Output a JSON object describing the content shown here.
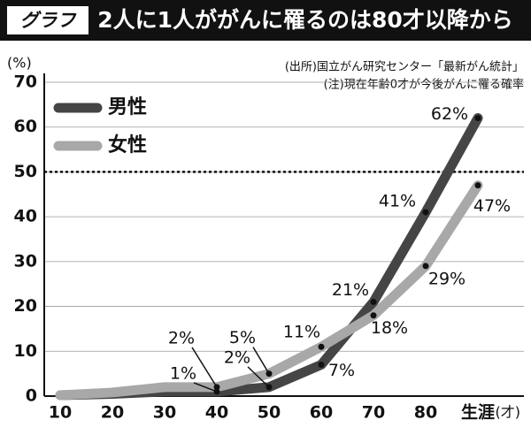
{
  "chart_data": {
    "type": "line",
    "tag": "グラフ",
    "title": "2人に1人ががんに罹るのは80才以降から",
    "y_unit": "(%)",
    "x_unit": "(才)",
    "notes": [
      "(出所)国立がん研究センター「最新がん統計」",
      "(注)現在年齢0才が今後がんに罹る確率"
    ],
    "categories": [
      "10",
      "20",
      "30",
      "40",
      "50",
      "60",
      "70",
      "80",
      "生涯"
    ],
    "series": [
      {
        "name": "男性",
        "color": "#454545",
        "values": [
          0.2,
          0.5,
          1,
          1,
          2,
          7,
          21,
          41,
          62
        ],
        "value_labels": [
          null,
          null,
          null,
          "1%",
          "2%",
          "7%",
          "21%",
          "41%",
          "62%"
        ]
      },
      {
        "name": "女性",
        "color": "#a8a8a8",
        "values": [
          0.2,
          0.8,
          2,
          2,
          5,
          11,
          18,
          29,
          47
        ],
        "value_labels": [
          null,
          null,
          null,
          "2%",
          "5%",
          "11%",
          "18%",
          "29%",
          "47%"
        ]
      }
    ],
    "ylim": [
      0,
      70
    ],
    "yticks": [
      0,
      10,
      20,
      30,
      40,
      50,
      60,
      70
    ],
    "hline": 50,
    "legend": "top-left"
  }
}
